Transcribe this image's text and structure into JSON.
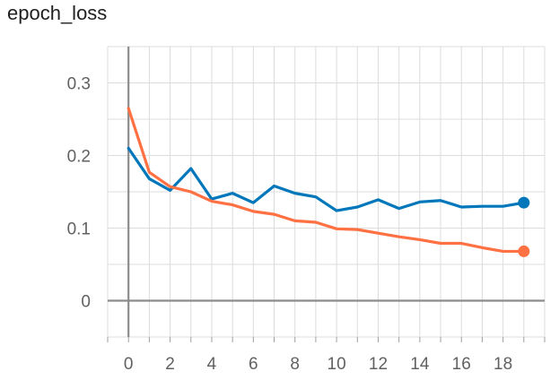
{
  "chart_data": {
    "type": "line",
    "title": "epoch_loss",
    "xlabel": "",
    "ylabel": "",
    "xlim": [
      -1,
      20
    ],
    "ylim": [
      -0.05,
      0.35
    ],
    "x_ticks": [
      0,
      2,
      4,
      6,
      8,
      10,
      12,
      14,
      16,
      18
    ],
    "x_tick_labels": [
      "0",
      "2",
      "4",
      "6",
      "8",
      "10",
      "12",
      "14",
      "16",
      "18"
    ],
    "y_ticks": [
      0,
      0.1,
      0.2,
      0.3
    ],
    "y_tick_labels": [
      "0",
      "0.1",
      "0.2",
      "0.3"
    ],
    "grid": true,
    "legend": "none",
    "series": [
      {
        "color": "#0077bb",
        "x": [
          0,
          1,
          2,
          3,
          4,
          5,
          6,
          7,
          8,
          9,
          10,
          11,
          12,
          13,
          14,
          15,
          16,
          17,
          18,
          19
        ],
        "y": [
          0.21,
          0.168,
          0.152,
          0.182,
          0.14,
          0.148,
          0.135,
          0.158,
          0.148,
          0.143,
          0.124,
          0.129,
          0.139,
          0.127,
          0.136,
          0.138,
          0.129,
          0.13,
          0.13,
          0.135
        ]
      },
      {
        "color": "#ff7043",
        "x": [
          0,
          1,
          2,
          3,
          4,
          5,
          6,
          7,
          8,
          9,
          10,
          11,
          12,
          13,
          14,
          15,
          16,
          17,
          18,
          19
        ],
        "y": [
          0.265,
          0.177,
          0.157,
          0.15,
          0.137,
          0.132,
          0.123,
          0.119,
          0.11,
          0.108,
          0.099,
          0.098,
          0.093,
          0.088,
          0.084,
          0.079,
          0.079,
          0.073,
          0.068,
          0.068
        ]
      }
    ]
  }
}
